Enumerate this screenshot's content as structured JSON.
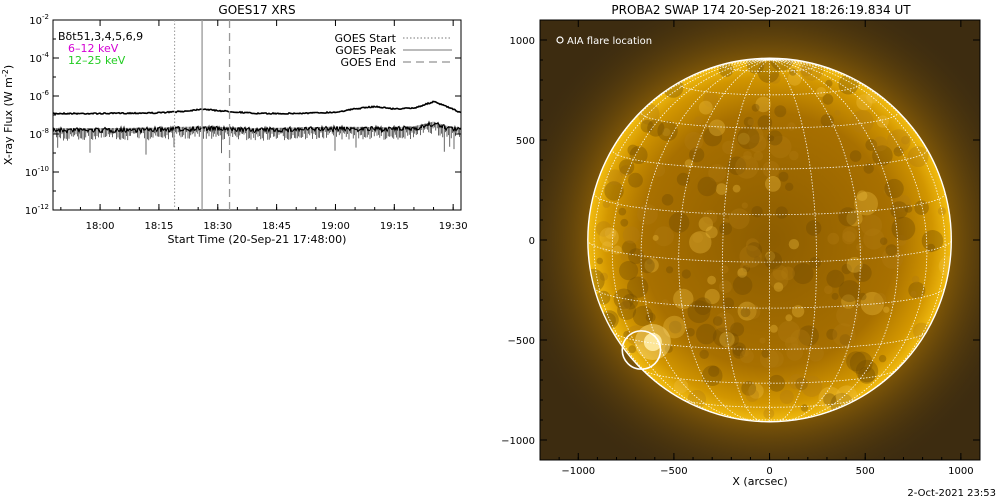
{
  "chart_data": [
    {
      "type": "line",
      "title": "GOES17 XRS",
      "xlabel": "Start Time (20-Sep-21 17:48:00)",
      "ylabel_base": "X-ray Flux (W m",
      "ylabel_exp": "-2",
      "ylabel_tail": ")",
      "yscale": "log",
      "ylim": [
        1e-12,
        0.01
      ],
      "xlim": [
        "17:48",
        "19:32"
      ],
      "x_ticks": [
        "18:00",
        "18:15",
        "18:30",
        "18:45",
        "19:00",
        "19:15",
        "19:30"
      ],
      "y_ticks": [
        {
          "value": 0.01,
          "base": "10",
          "exp": "-2"
        },
        {
          "value": 0.0001,
          "base": "10",
          "exp": "-4"
        },
        {
          "value": 1e-06,
          "base": "10",
          "exp": "-6"
        },
        {
          "value": 1e-08,
          "base": "10",
          "exp": "-8"
        },
        {
          "value": 1e-10,
          "base": "10",
          "exp": "-10"
        },
        {
          "value": 1e-12,
          "base": "10",
          "exp": "-12"
        }
      ],
      "channel_labels": [
        {
          "text": "Bδt51,3,4,5,6,9",
          "color": "#000000"
        },
        {
          "text": "6–12 keV",
          "color": "#d400d4"
        },
        {
          "text": "12–25 keV",
          "color": "#22cc22"
        }
      ],
      "legend": [
        {
          "label": "GOES Start",
          "style": "dotted"
        },
        {
          "label": "GOES Peak",
          "style": "solid"
        },
        {
          "label": "GOES End",
          "style": "dashed"
        }
      ],
      "legend_position": "top-right",
      "event_lines": [
        {
          "kind": "start",
          "time": "18:19"
        },
        {
          "kind": "peak",
          "time": "18:26"
        },
        {
          "kind": "end",
          "time": "18:33"
        }
      ],
      "series": [
        {
          "channel": "long",
          "color": "#000000",
          "x": [
            "17:48",
            "18:00",
            "18:15",
            "18:22",
            "18:26",
            "18:30",
            "18:40",
            "18:50",
            "19:00",
            "19:05",
            "19:10",
            "19:15",
            "19:20",
            "19:25",
            "19:28",
            "19:32"
          ],
          "y": [
            1.2e-07,
            1.2e-07,
            1.3e-07,
            1.6e-07,
            2.1e-07,
            1.7e-07,
            1.2e-07,
            1.2e-07,
            1.4e-07,
            2.1e-07,
            2.8e-07,
            2.1e-07,
            2.3e-07,
            5e-07,
            3e-07,
            1.3e-07
          ]
        },
        {
          "channel": "short",
          "color": "#000000",
          "x": [
            "17:48",
            "18:00",
            "18:15",
            "18:26",
            "18:40",
            "19:00",
            "19:15",
            "19:20",
            "19:25",
            "19:28",
            "19:32"
          ],
          "y": [
            1.6e-08,
            1.6e-08,
            1.7e-08,
            2e-08,
            1.6e-08,
            1.9e-08,
            1.8e-08,
            2e-08,
            3.5e-08,
            2.2e-08,
            1.6e-08
          ]
        }
      ]
    },
    {
      "type": "image",
      "title": "PROBA2 SWAP 174 20-Sep-2021 18:26:19.834 UT",
      "xlabel": "X (arcsec)",
      "xlim": [
        -1200,
        1100
      ],
      "ylim": [
        -1100,
        1100
      ],
      "x_ticks": [
        -1000,
        -500,
        0,
        500,
        1000
      ],
      "y_ticks": [
        1000,
        500,
        0,
        -500,
        -1000
      ],
      "x_tick_labels": [
        "−1000",
        "−500",
        "0",
        "500",
        "1000"
      ],
      "y_tick_labels": [
        "1000",
        "500",
        "0",
        "−500",
        "−1000"
      ],
      "solar_radius_arcsec": 950,
      "flare_marker_label": "AIA flare location",
      "flare_location": {
        "x": -670,
        "y": -550
      },
      "colors": {
        "disk_core": "#8a5a00",
        "disk_limb": "#e0a400",
        "corona": "#c88a00",
        "background": "#3a2a10",
        "grid": "#ffffff"
      }
    }
  ],
  "footer": {
    "timestamp": "2-Oct-2021 23:53"
  }
}
